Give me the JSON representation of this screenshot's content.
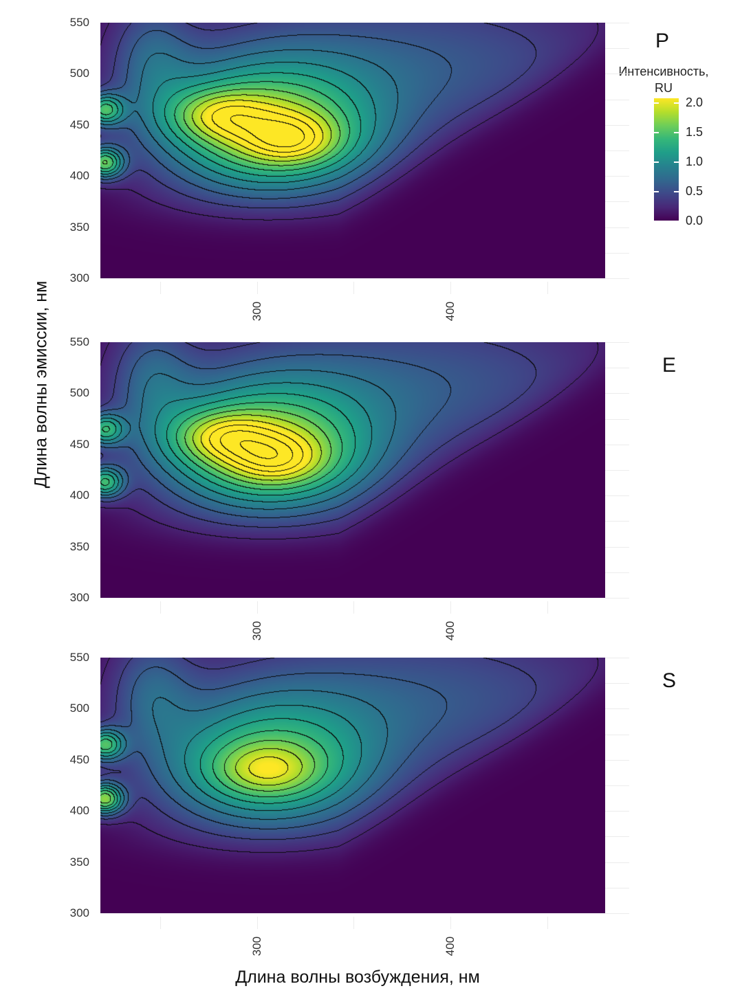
{
  "chart_data": {
    "type": "heatmap",
    "xlabel": "Длина волны возбуждения, нм",
    "ylabel": "Длина волны эмиссии, нм",
    "xlim": [
      219,
      480
    ],
    "ylim": [
      300,
      550
    ],
    "xticks": [
      "300",
      "400"
    ],
    "yticks": [
      "550",
      "500",
      "450",
      "400",
      "350",
      "300"
    ],
    "contours": true,
    "colorbar": {
      "title_line1": "Интенсивность,",
      "title_line2": "RU",
      "ticks": [
        "2.0",
        "1.5",
        "1.0",
        "0.5",
        "0.0"
      ],
      "range": [
        0,
        2.1
      ],
      "colormap": "viridis"
    },
    "panels": [
      {
        "label": "P",
        "peaks": [
          {
            "ex": 280,
            "em": 460,
            "value": 2.05
          },
          {
            "ex": 318,
            "em": 435,
            "value": 2.1
          },
          {
            "ex": 221,
            "em": 465,
            "value": 1.5
          },
          {
            "ex": 221,
            "em": 413,
            "value": 1.8
          }
        ],
        "main_amp": 2.0
      },
      {
        "label": "E",
        "peaks": [
          {
            "ex": 282,
            "em": 458,
            "value": 2.05
          },
          {
            "ex": 310,
            "em": 435,
            "value": 2.0
          },
          {
            "ex": 221,
            "em": 465,
            "value": 1.4
          },
          {
            "ex": 221,
            "em": 413,
            "value": 1.6
          }
        ],
        "main_amp": 1.95
      },
      {
        "label": "S",
        "peaks": [
          {
            "ex": 305,
            "em": 440,
            "value": 1.7
          },
          {
            "ex": 221,
            "em": 465,
            "value": 1.6
          },
          {
            "ex": 221,
            "em": 412,
            "value": 2.0
          }
        ],
        "main_amp": 1.7
      }
    ]
  }
}
